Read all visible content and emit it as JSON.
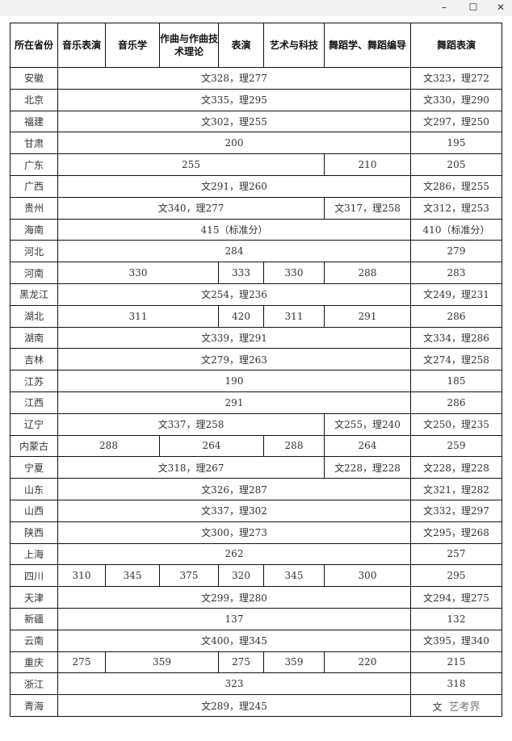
{
  "window": {
    "minimize": "–",
    "maximize": "☐",
    "close": "✕"
  },
  "headers": [
    "所在省份",
    "音乐表演",
    "音乐学",
    "作曲与作曲技术理论",
    "表演",
    "艺术与科技",
    "舞蹈学、舞蹈编导",
    "舞蹈表演"
  ],
  "rows": [
    {
      "province": "安徽",
      "cells": [
        {
          "text": "文328，理277",
          "span": 6
        }
      ],
      "dance": "文323，理272"
    },
    {
      "province": "北京",
      "cells": [
        {
          "text": "文335，理295",
          "span": 6
        }
      ],
      "dance": "文330，理290"
    },
    {
      "province": "福建",
      "cells": [
        {
          "text": "文302，理255",
          "span": 6
        }
      ],
      "dance": "文297，理250"
    },
    {
      "province": "甘肃",
      "cells": [
        {
          "text": "200",
          "span": 6
        }
      ],
      "dance": "195"
    },
    {
      "province": "广东",
      "cells": [
        {
          "text": "255",
          "span": 5
        },
        {
          "text": "210",
          "span": 1
        }
      ],
      "dance": "205"
    },
    {
      "province": "广西",
      "cells": [
        {
          "text": "文291，理260",
          "span": 6
        }
      ],
      "dance": "文286，理255"
    },
    {
      "province": "贵州",
      "cells": [
        {
          "text": "文340，理277",
          "span": 5
        },
        {
          "text": "文317，理258",
          "span": 1
        }
      ],
      "dance": "文312，理253"
    },
    {
      "province": "海南",
      "cells": [
        {
          "text": "415（标准分）",
          "span": 6
        }
      ],
      "dance": "410（标准分）"
    },
    {
      "province": "河北",
      "cells": [
        {
          "text": "284",
          "span": 6
        }
      ],
      "dance": "279"
    },
    {
      "province": "河南",
      "cells": [
        {
          "text": "330",
          "span": 3
        },
        {
          "text": "333",
          "span": 1
        },
        {
          "text": "330",
          "span": 1
        },
        {
          "text": "288",
          "span": 1
        }
      ],
      "dance": "283"
    },
    {
      "province": "黑龙江",
      "cells": [
        {
          "text": "文254，理236",
          "span": 6
        }
      ],
      "dance": "文249，理231"
    },
    {
      "province": "湖北",
      "cells": [
        {
          "text": "311",
          "span": 3
        },
        {
          "text": "420",
          "span": 1
        },
        {
          "text": "311",
          "span": 1
        },
        {
          "text": "291",
          "span": 1
        }
      ],
      "dance": "286"
    },
    {
      "province": "湖南",
      "cells": [
        {
          "text": "文339，理291",
          "span": 6
        }
      ],
      "dance": "文334，理286"
    },
    {
      "province": "吉林",
      "cells": [
        {
          "text": "文279，理263",
          "span": 6
        }
      ],
      "dance": "文274，理258"
    },
    {
      "province": "江苏",
      "cells": [
        {
          "text": "190",
          "span": 6
        }
      ],
      "dance": "185"
    },
    {
      "province": "江西",
      "cells": [
        {
          "text": "291",
          "span": 6
        }
      ],
      "dance": "286"
    },
    {
      "province": "辽宁",
      "cells": [
        {
          "text": "文337，理258",
          "span": 5
        },
        {
          "text": "文255，理240",
          "span": 1
        }
      ],
      "dance": "文250，理235"
    },
    {
      "province": "内蒙古",
      "cells": [
        {
          "text": "288",
          "span": 2
        },
        {
          "text": "264",
          "span": 2
        },
        {
          "text": "288",
          "span": 1
        },
        {
          "text": "264",
          "span": 1
        }
      ],
      "dance": "259"
    },
    {
      "province": "宁夏",
      "cells": [
        {
          "text": "文318，理267",
          "span": 5
        },
        {
          "text": "文228，理228",
          "span": 1
        }
      ],
      "dance": "文228，理228"
    },
    {
      "province": "山东",
      "cells": [
        {
          "text": "文326，理287",
          "span": 6
        }
      ],
      "dance": "文321，理282"
    },
    {
      "province": "山西",
      "cells": [
        {
          "text": "文337，理302",
          "span": 6
        }
      ],
      "dance": "文332，理297"
    },
    {
      "province": "陕西",
      "cells": [
        {
          "text": "文300，理273",
          "span": 6
        }
      ],
      "dance": "文295，理268"
    },
    {
      "province": "上海",
      "cells": [
        {
          "text": "262",
          "span": 6
        }
      ],
      "dance": "257"
    },
    {
      "province": "四川",
      "cells": [
        {
          "text": "310",
          "span": 1
        },
        {
          "text": "345",
          "span": 1
        },
        {
          "text": "375",
          "span": 1
        },
        {
          "text": "320",
          "span": 1
        },
        {
          "text": "345",
          "span": 1
        },
        {
          "text": "300",
          "span": 1
        }
      ],
      "dance": "295"
    },
    {
      "province": "天津",
      "cells": [
        {
          "text": "文299，理280",
          "span": 6
        }
      ],
      "dance": "文294，理275"
    },
    {
      "province": "新疆",
      "cells": [
        {
          "text": "137",
          "span": 6
        }
      ],
      "dance": "132"
    },
    {
      "province": "云南",
      "cells": [
        {
          "text": "文400，理345",
          "span": 6
        }
      ],
      "dance": "文395，理340"
    },
    {
      "province": "重庆",
      "cells": [
        {
          "text": "275",
          "span": 1
        },
        {
          "text": "359",
          "span": 2
        },
        {
          "text": "275",
          "span": 1
        },
        {
          "text": "359",
          "span": 1
        },
        {
          "text": "220",
          "span": 1
        }
      ],
      "dance": "215"
    },
    {
      "province": "浙江",
      "cells": [
        {
          "text": "323",
          "span": 6
        }
      ],
      "dance": "318"
    },
    {
      "province": "青海",
      "cells": [
        {
          "text": "文289，理245",
          "span": 6
        }
      ],
      "dance": "文"
    }
  ],
  "watermark": "艺考界"
}
